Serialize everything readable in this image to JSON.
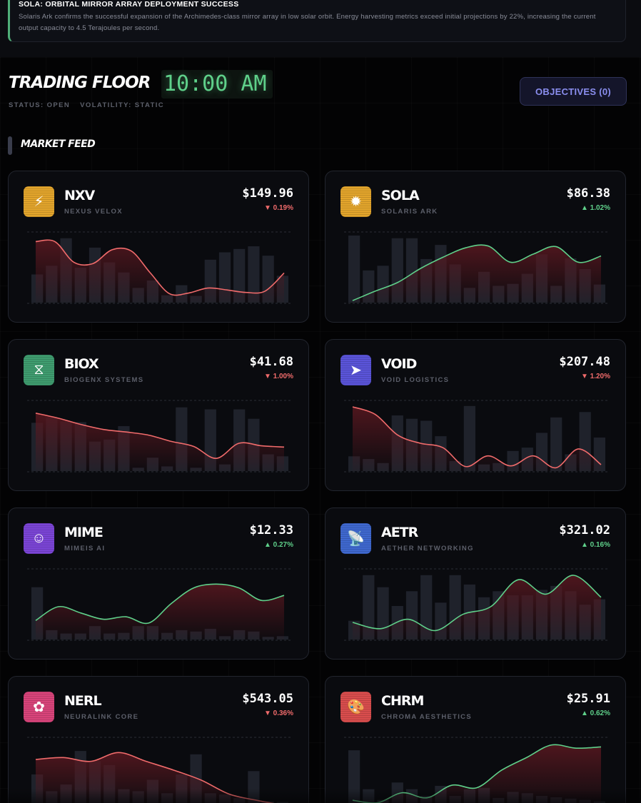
{
  "news": {
    "title": "SOLA: ORBITAL MIRROR ARRAY DEPLOYMENT SUCCESS",
    "body": "Solaris Ark confirms the successful expansion of the Archimedes-class mirror array in low solar orbit. Energy harvesting metrics exceed initial projections by 22%, increasing the current output capacity to 4.5 Terajoules per second.",
    "accent_color": "#4fae78"
  },
  "header": {
    "title": "TRADING FLOOR",
    "clock": "10:00 AM",
    "status": "STATUS: OPEN",
    "volatility": "VOLATILITY: STATIC",
    "objectives_label": "OBJECTIVES (0)"
  },
  "feed": {
    "label": "MARKET FEED"
  },
  "colors": {
    "up": "#5fd08a",
    "down": "#f06b6b",
    "bar": "#1f222b",
    "fill": "#5a1820"
  },
  "stocks": [
    {
      "ticker": "NXV",
      "name": "NEXUS VELOX",
      "price": "$149.96",
      "change": "▼ 0.19%",
      "direction": "down",
      "icon": "lightning-icon",
      "glyph": "⚡",
      "icon_color": "#e3a52c",
      "bars": [
        0.42,
        0.55,
        0.96,
        0.52,
        0.82,
        0.6,
        0.45,
        0.22,
        0.33,
        0.11,
        0.26,
        0.1,
        0.64,
        0.75,
        0.8,
        0.84,
        0.7,
        0.4
      ],
      "line": [
        0.95,
        0.95,
        0.62,
        0.6,
        0.82,
        0.8,
        0.45,
        0.12,
        0.13,
        0.21,
        0.18,
        0.14,
        0.16,
        0.45
      ]
    },
    {
      "ticker": "SOLA",
      "name": "SOLARIS ARK",
      "price": "$86.38",
      "change": "▲ 1.02%",
      "direction": "up",
      "icon": "sun-icon",
      "glyph": "✹",
      "icon_color": "#e3a52c",
      "bars": [
        1.0,
        0.48,
        0.55,
        0.96,
        0.96,
        0.65,
        0.86,
        0.57,
        0.22,
        0.46,
        0.25,
        0.28,
        0.43,
        0.72,
        0.25,
        0.66,
        0.5,
        0.27
      ],
      "line": [
        0.01,
        0.16,
        0.3,
        0.52,
        0.7,
        0.85,
        0.88,
        0.62,
        0.75,
        0.87,
        0.62,
        0.72
      ]
    },
    {
      "ticker": "BIOX",
      "name": "BIOGENX SYSTEMS",
      "price": "$41.68",
      "change": "▼ 1.00%",
      "direction": "down",
      "icon": "dna-icon",
      "glyph": "⧖",
      "icon_color": "#3f9c6f",
      "bars": [
        0.72,
        0.8,
        0.74,
        0.73,
        0.44,
        0.47,
        0.67,
        0.05,
        0.2,
        0.07,
        0.95,
        0.05,
        0.92,
        0.1,
        0.92,
        0.78,
        0.25,
        0.22
      ],
      "line": [
        0.9,
        0.82,
        0.72,
        0.64,
        0.6,
        0.55,
        0.45,
        0.37,
        0.18,
        0.42,
        0.38,
        0.36
      ]
    },
    {
      "ticker": "VOID",
      "name": "VOID LOGISTICS",
      "price": "$207.48",
      "change": "▼ 1.20%",
      "direction": "down",
      "icon": "rocket-icon",
      "glyph": "➤",
      "icon_color": "#5a54d8",
      "bars": [
        0.22,
        0.18,
        0.12,
        0.83,
        0.78,
        0.75,
        0.52,
        0.15,
        0.97,
        0.1,
        0.12,
        0.3,
        0.35,
        0.57,
        0.8,
        0.25,
        0.88,
        0.5
      ],
      "line": [
        1.0,
        0.88,
        0.55,
        0.42,
        0.35,
        0.05,
        0.22,
        0.06,
        0.22,
        0.03,
        0.33,
        0.08
      ]
    },
    {
      "ticker": "MIME",
      "name": "MIMEIS AI",
      "price": "$12.33",
      "change": "▲ 0.27%",
      "direction": "up",
      "icon": "robot-icon",
      "glyph": "☺",
      "icon_color": "#7b45d6",
      "bars": [
        0.78,
        0.14,
        0.09,
        0.09,
        0.2,
        0.09,
        0.1,
        0.2,
        0.2,
        0.1,
        0.14,
        0.12,
        0.16,
        0.05,
        0.14,
        0.12,
        0.04,
        0.05
      ],
      "line": [
        0.28,
        0.5,
        0.4,
        0.3,
        0.34,
        0.24,
        0.55,
        0.8,
        0.86,
        0.8,
        0.6,
        0.68
      ]
    },
    {
      "ticker": "AETR",
      "name": "AETHER NETWORKING",
      "price": "$321.02",
      "change": "▲ 0.16%",
      "direction": "up",
      "icon": "antenna-icon",
      "glyph": "📡",
      "icon_color": "#3f68cf",
      "bars": [
        0.28,
        0.96,
        0.78,
        0.5,
        0.72,
        0.96,
        0.55,
        0.96,
        0.82,
        0.63,
        0.72,
        0.66,
        0.66,
        0.74,
        0.8,
        0.72,
        0.52,
        0.6
      ],
      "line": [
        0.25,
        0.15,
        0.3,
        0.12,
        0.38,
        0.5,
        0.93,
        0.7,
        1.0,
        0.65
      ]
    },
    {
      "ticker": "NERL",
      "name": "NEURALINK CORE",
      "price": "$543.05",
      "change": "▼ 0.36%",
      "direction": "down",
      "icon": "brain-icon",
      "glyph": "✿",
      "icon_color": "#d8447a",
      "bars": [
        0.5,
        0.25,
        0.35,
        0.85,
        0.7,
        0.64,
        0.28,
        0.25,
        0.42,
        0.22,
        0.5,
        0.8,
        0.22,
        0.2,
        0.15,
        0.55,
        0.1,
        0.09
      ],
      "line": [
        0.75,
        0.78,
        0.72,
        0.86,
        0.72,
        0.58,
        0.42,
        0.2,
        0.1,
        0.02
      ]
    },
    {
      "ticker": "CHRM",
      "name": "CHROMA AESTHETICS",
      "price": "$25.91",
      "change": "▲ 0.62%",
      "direction": "up",
      "icon": "palette-icon",
      "glyph": "🎨",
      "icon_color": "#d84d4d",
      "bars": [
        0.86,
        0.28,
        0.12,
        0.38,
        0.28,
        0.18,
        0.33,
        0.18,
        0.28,
        0.3,
        0.15,
        0.24,
        0.22,
        0.18,
        0.16,
        0.14,
        0.12,
        0.1
      ],
      "line": [
        0.1,
        0.06,
        0.22,
        0.14,
        0.34,
        0.3,
        0.58,
        0.78,
        0.98,
        0.93,
        0.95
      ]
    }
  ]
}
